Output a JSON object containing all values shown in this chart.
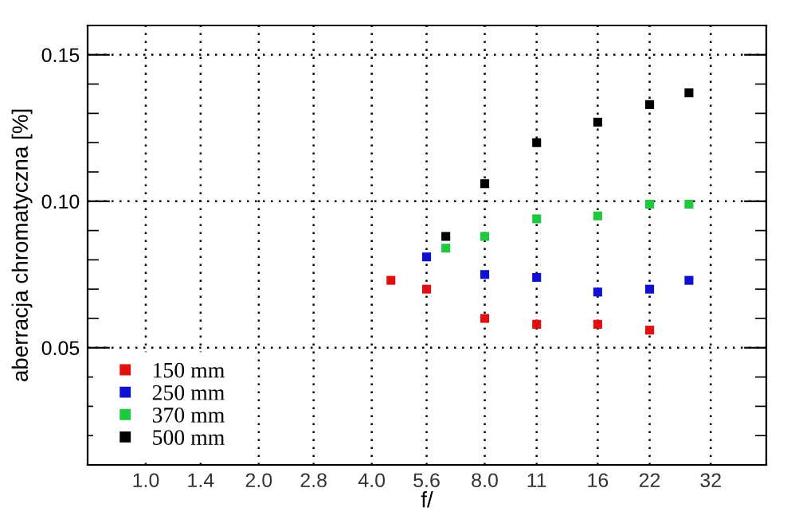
{
  "chart_data": {
    "type": "scatter",
    "xlabel": "f/",
    "ylabel": "aberracja chromatyczna [%]",
    "log": "x",
    "marker": "square",
    "grid": true,
    "legend": "bottom left",
    "xlim": [
      0.7,
      45
    ],
    "xticks": [
      {
        "value": 1.0,
        "label": "1.0"
      },
      1.4,
      {
        "value": 2.0,
        "label": "2.0"
      },
      2.8,
      {
        "value": 4.0,
        "label": "4.0"
      },
      5.6,
      {
        "value": 8.0,
        "label": "8.0"
      },
      11,
      16,
      22,
      32
    ],
    "ylim": [
      0.01,
      0.16
    ],
    "yticks": [
      {
        "value": 0.02,
        "label": null
      },
      {
        "value": 0.03,
        "label": null
      },
      {
        "value": 0.04,
        "label": null
      },
      0.05,
      {
        "value": 0.06,
        "label": null
      },
      {
        "value": 0.07,
        "label": null
      },
      {
        "value": 0.08,
        "label": null
      },
      {
        "value": 0.09,
        "label": null
      },
      {
        "value": 0.1,
        "label": "0.10"
      },
      {
        "value": 0.11,
        "label": null
      },
      {
        "value": 0.12,
        "label": null
      },
      {
        "value": 0.13,
        "label": null
      },
      {
        "value": 0.14,
        "label": null
      },
      0.15
    ],
    "series": [
      {
        "name": "150 mm",
        "color": "#e01010",
        "x": [
          4.5,
          5.6,
          8,
          11,
          16,
          22
        ],
        "values": [
          0.073,
          0.07,
          0.06,
          0.058,
          0.058,
          0.056
        ]
      },
      {
        "name": "250 mm",
        "color": "#1010d0",
        "x": [
          5.6,
          8,
          11,
          16,
          22,
          28
        ],
        "values": [
          0.081,
          0.075,
          0.074,
          0.069,
          0.07,
          0.073
        ]
      },
      {
        "name": "370 mm",
        "color": "#20c840",
        "x": [
          6.3,
          8,
          11,
          16,
          22,
          28
        ],
        "values": [
          0.084,
          0.088,
          0.094,
          0.095,
          0.099,
          0.099
        ]
      },
      {
        "name": "500 mm",
        "color": "#000000",
        "x": [
          6.3,
          8,
          11,
          16,
          22,
          28
        ],
        "values": [
          0.088,
          0.106,
          0.12,
          0.127,
          0.133,
          0.137
        ]
      }
    ]
  }
}
